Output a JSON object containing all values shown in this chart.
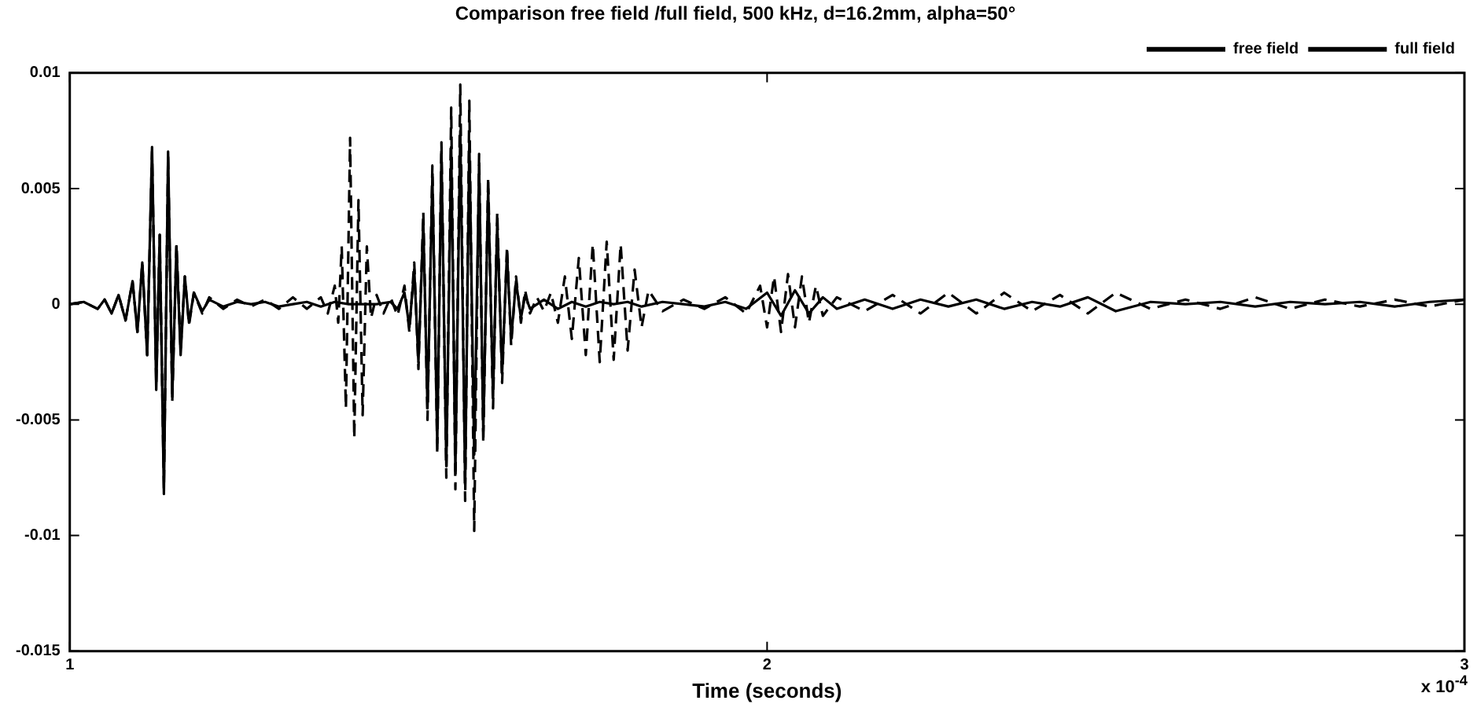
{
  "chart_data": {
    "type": "line",
    "title": "Comparison free field /full field, 500 kHz, d=16.2mm, alpha=50°",
    "xlabel": "Time (seconds)",
    "annotations": [
      "x 10$^{-4}$"
    ],
    "xlim": [
      1,
      3
    ],
    "xticks": [
      1,
      2,
      3
    ],
    "ylim": [
      -0.015,
      0.01
    ],
    "yticks": [
      -0.015,
      -0.01,
      -0.005,
      0,
      0.005,
      0.01
    ],
    "grid": false,
    "legend": "top right",
    "marker": "none",
    "series": [
      {
        "name": "free field",
        "color": "#000000",
        "line_style": "solid",
        "x": [
          1.0,
          1.02,
          1.04,
          1.05,
          1.06,
          1.07,
          1.08,
          1.09,
          1.097,
          1.104,
          1.111,
          1.118,
          1.124,
          1.129,
          1.135,
          1.141,
          1.147,
          1.153,
          1.159,
          1.165,
          1.171,
          1.178,
          1.19,
          1.2,
          1.22,
          1.24,
          1.26,
          1.28,
          1.3,
          1.32,
          1.34,
          1.36,
          1.38,
          1.4,
          1.42,
          1.44,
          1.46,
          1.47,
          1.48,
          1.487,
          1.494,
          1.5,
          1.507,
          1.513,
          1.52,
          1.527,
          1.533,
          1.54,
          1.547,
          1.553,
          1.56,
          1.567,
          1.573,
          1.58,
          1.587,
          1.593,
          1.6,
          1.607,
          1.613,
          1.62,
          1.627,
          1.633,
          1.64,
          1.647,
          1.653,
          1.66,
          1.68,
          1.7,
          1.72,
          1.74,
          1.76,
          1.78,
          1.8,
          1.82,
          1.85,
          1.88,
          1.91,
          1.94,
          1.97,
          2.0,
          2.02,
          2.04,
          2.06,
          2.08,
          2.1,
          2.14,
          2.18,
          2.22,
          2.26,
          2.3,
          2.34,
          2.38,
          2.42,
          2.46,
          2.5,
          2.55,
          2.6,
          2.65,
          2.7,
          2.75,
          2.8,
          2.85,
          2.9,
          2.95,
          3.0
        ],
        "values": [
          0,
          0.0001,
          -0.0002,
          0.0002,
          -0.0004,
          0.0004,
          -0.0007,
          0.001,
          -0.0012,
          0.0018,
          -0.0022,
          0.0068,
          -0.0037,
          0.003,
          -0.0082,
          0.0066,
          -0.004,
          0.0025,
          -0.0022,
          0.0012,
          -0.0008,
          0.0005,
          -0.0003,
          0.0002,
          -0.0001,
          0.0001,
          0,
          0.0001,
          -0.0001,
          0,
          0.0001,
          -0.0001,
          0.0001,
          0,
          0,
          0,
          0.0001,
          -0.0002,
          0.0005,
          -0.001,
          0.0015,
          -0.0025,
          0.0035,
          -0.0045,
          0.0055,
          -0.006,
          0.0065,
          -0.007,
          0.0068,
          -0.0072,
          0.0075,
          -0.0078,
          0.007,
          -0.0065,
          0.006,
          -0.0055,
          0.005,
          -0.004,
          0.0035,
          -0.003,
          0.0022,
          -0.0015,
          0.001,
          -0.0006,
          0.0004,
          -0.0002,
          0.0002,
          -0.0002,
          0.0001,
          -0.0001,
          0.0001,
          0,
          0.0001,
          -0.0001,
          0.0001,
          0,
          -0.0001,
          0.0001,
          -0.0002,
          0.0005,
          -0.0005,
          0.0006,
          -0.0004,
          0.0003,
          -0.0002,
          0.0002,
          -0.0002,
          0.0002,
          -0.0001,
          0.0002,
          -0.0002,
          0.0001,
          -0.0001,
          0.0003,
          -0.0003,
          0.0001,
          0,
          0.0001,
          -0.0001,
          0.0001,
          0,
          0.0001,
          -0.0001,
          0.0001,
          0.0002
        ]
      },
      {
        "name": "full field",
        "color": "#000000",
        "line_style": "dashed",
        "x": [
          1.0,
          1.02,
          1.04,
          1.05,
          1.06,
          1.07,
          1.08,
          1.09,
          1.097,
          1.104,
          1.111,
          1.118,
          1.124,
          1.129,
          1.135,
          1.141,
          1.147,
          1.153,
          1.159,
          1.165,
          1.171,
          1.178,
          1.19,
          1.2,
          1.22,
          1.24,
          1.26,
          1.28,
          1.3,
          1.32,
          1.34,
          1.36,
          1.37,
          1.38,
          1.385,
          1.39,
          1.396,
          1.402,
          1.408,
          1.414,
          1.42,
          1.426,
          1.432,
          1.44,
          1.45,
          1.46,
          1.47,
          1.48,
          1.487,
          1.494,
          1.5,
          1.507,
          1.513,
          1.52,
          1.527,
          1.533,
          1.54,
          1.547,
          1.553,
          1.56,
          1.567,
          1.573,
          1.58,
          1.587,
          1.593,
          1.6,
          1.607,
          1.613,
          1.62,
          1.627,
          1.633,
          1.64,
          1.647,
          1.653,
          1.66,
          1.67,
          1.68,
          1.69,
          1.7,
          1.71,
          1.72,
          1.73,
          1.74,
          1.75,
          1.76,
          1.77,
          1.78,
          1.79,
          1.8,
          1.81,
          1.82,
          1.83,
          1.85,
          1.88,
          1.91,
          1.94,
          1.97,
          1.99,
          2.0,
          2.01,
          2.02,
          2.03,
          2.04,
          2.05,
          2.06,
          2.07,
          2.08,
          2.1,
          2.14,
          2.18,
          2.22,
          2.26,
          2.3,
          2.34,
          2.38,
          2.42,
          2.46,
          2.5,
          2.55,
          2.6,
          2.65,
          2.7,
          2.75,
          2.8,
          2.85,
          2.9,
          2.95,
          3.0
        ],
        "values": [
          0,
          0.0001,
          -0.0002,
          0.0002,
          -0.0004,
          0.0004,
          -0.0007,
          0.001,
          -0.0012,
          0.0018,
          -0.0022,
          0.0066,
          -0.0035,
          0.003,
          -0.008,
          0.0064,
          -0.0042,
          0.0026,
          -0.002,
          0.0012,
          -0.0009,
          0.0005,
          -0.0004,
          0.0003,
          -0.0002,
          0.0002,
          -0.0001,
          0.0002,
          -0.0002,
          0.0003,
          -0.0002,
          0.0003,
          -0.0004,
          0.0008,
          -0.0008,
          0.0025,
          -0.0045,
          0.0072,
          -0.0058,
          0.0045,
          -0.0048,
          0.0025,
          -0.0006,
          0.0004,
          -0.0004,
          0.0003,
          -0.0005,
          0.0008,
          -0.0012,
          0.0018,
          -0.0028,
          0.004,
          -0.005,
          0.006,
          -0.0065,
          0.007,
          -0.0075,
          0.0085,
          -0.008,
          0.0095,
          -0.0085,
          0.0088,
          -0.0098,
          0.0065,
          -0.006,
          0.0055,
          -0.0045,
          0.004,
          -0.0034,
          0.0025,
          -0.0018,
          0.0012,
          -0.0008,
          0.0006,
          -0.0004,
          0.0003,
          -0.0003,
          0.0005,
          -0.0008,
          0.0012,
          -0.0015,
          0.002,
          -0.0022,
          0.0026,
          -0.0025,
          0.0027,
          -0.0024,
          0.0026,
          -0.002,
          0.0015,
          -0.001,
          0.0006,
          -0.0003,
          0.0002,
          -0.0002,
          0.0003,
          -0.0004,
          0.0008,
          -0.001,
          0.0012,
          -0.0012,
          0.0013,
          -0.001,
          0.0012,
          -0.0008,
          0.0008,
          -0.0005,
          0.0003,
          -0.0003,
          0.0004,
          -0.0004,
          0.0005,
          -0.0004,
          0.0005,
          -0.0003,
          0.0004,
          -0.0004,
          0.0005,
          -0.0002,
          0.0002,
          -0.0002,
          0.0003,
          -0.0002,
          0.0002,
          -0.0001,
          0.0002,
          -0.0001,
          0.0002
        ]
      }
    ]
  }
}
